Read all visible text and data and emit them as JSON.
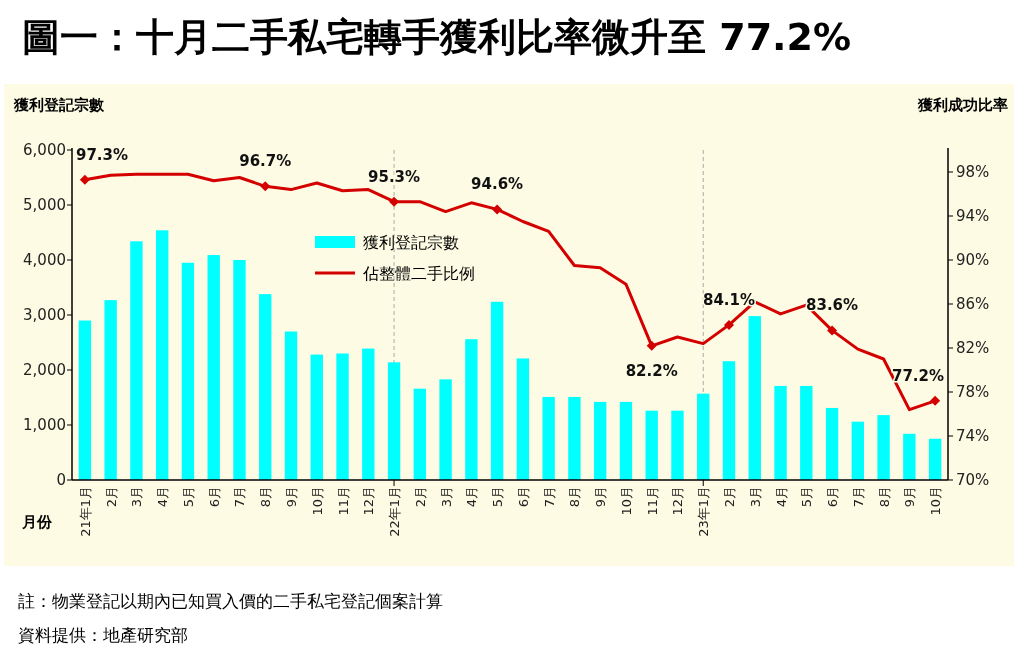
{
  "chart_data": {
    "type": "bar",
    "title": "圖一：十月二手私宅轉手獲利比率微升至 77.2%",
    "ylabel": "獲利登記宗數",
    "y2label": "獲利成功比率",
    "xlabel": "月份",
    "categories": [
      "21年1月",
      "2月",
      "3月",
      "4月",
      "5月",
      "6月",
      "7月",
      "8月",
      "9月",
      "10月",
      "11月",
      "12月",
      "22年1月",
      "2月",
      "3月",
      "4月",
      "5月",
      "6月",
      "7月",
      "8月",
      "9月",
      "10月",
      "11月",
      "12月",
      "23年1月",
      "2月",
      "3月",
      "4月",
      "5月",
      "6月",
      "7月",
      "8月",
      "9月",
      "10月"
    ],
    "series": [
      {
        "name": "獲利登記宗數",
        "color": "#00ffff",
        "values": [
          2900,
          3270,
          4340,
          4540,
          3950,
          4090,
          4000,
          3380,
          2700,
          2280,
          2300,
          2390,
          2140,
          1660,
          1830,
          2560,
          3240,
          2210,
          1510,
          1510,
          1420,
          1420,
          1260,
          1260,
          1570,
          2160,
          2980,
          1710,
          1710,
          1310,
          1060,
          1180,
          840,
          750
        ]
      },
      {
        "name": "佔整體二手比例",
        "type": "line",
        "axis": "y2",
        "color": "#d40000",
        "values": [
          97.3,
          97.7,
          97.8,
          97.8,
          97.8,
          97.2,
          97.5,
          96.7,
          96.4,
          97.0,
          96.3,
          96.4,
          95.3,
          95.3,
          94.4,
          95.2,
          94.6,
          93.5,
          92.6,
          89.5,
          89.3,
          87.8,
          82.2,
          83.0,
          82.4,
          84.1,
          86.2,
          85.1,
          85.9,
          83.6,
          81.9,
          81.0,
          76.4,
          77.2
        ],
        "value_labels": [
          "97.3%",
          null,
          null,
          null,
          null,
          null,
          null,
          "96.7%",
          null,
          null,
          null,
          null,
          "95.3%",
          null,
          null,
          null,
          "94.6%",
          null,
          null,
          null,
          null,
          null,
          "82.2%",
          null,
          null,
          "84.1%",
          null,
          null,
          null,
          "83.6%",
          null,
          null,
          null,
          "77.2%"
        ]
      }
    ],
    "ylim": [
      0,
      6000
    ],
    "yticks": [
      0,
      {
        "value": 1000,
        "label": "1,000"
      },
      {
        "value": 2000,
        "label": "2,000"
      },
      {
        "value": 3000,
        "label": "3,000"
      },
      {
        "value": 4000,
        "label": "4,000"
      },
      {
        "value": 5000,
        "label": "5,000"
      },
      {
        "value": 6000,
        "label": "6,000"
      }
    ],
    "y2lim": [
      70,
      100
    ],
    "y2ticks": [
      {
        "value": 70,
        "label": "70%"
      },
      {
        "value": 74,
        "label": "74%"
      },
      {
        "value": 78,
        "label": "78%"
      },
      {
        "value": 82,
        "label": "82%"
      },
      {
        "value": 86,
        "label": "86%"
      },
      {
        "value": 90,
        "label": "90%"
      },
      {
        "value": 94,
        "label": "94%"
      },
      {
        "value": 98,
        "label": "98%"
      }
    ],
    "ref_lines": [
      {
        "axis": "x",
        "value": "22年1月",
        "color": "#aaaaaa",
        "line_style": "dashed"
      },
      {
        "axis": "x",
        "value": "23年1月",
        "color": "#aaaaaa",
        "line_style": "dashed"
      }
    ],
    "legend": "top",
    "annotations": [
      "註：物業登記以期內已知買入價的二手私宅登記個案計算",
      "資料提供：地產研究部"
    ]
  }
}
